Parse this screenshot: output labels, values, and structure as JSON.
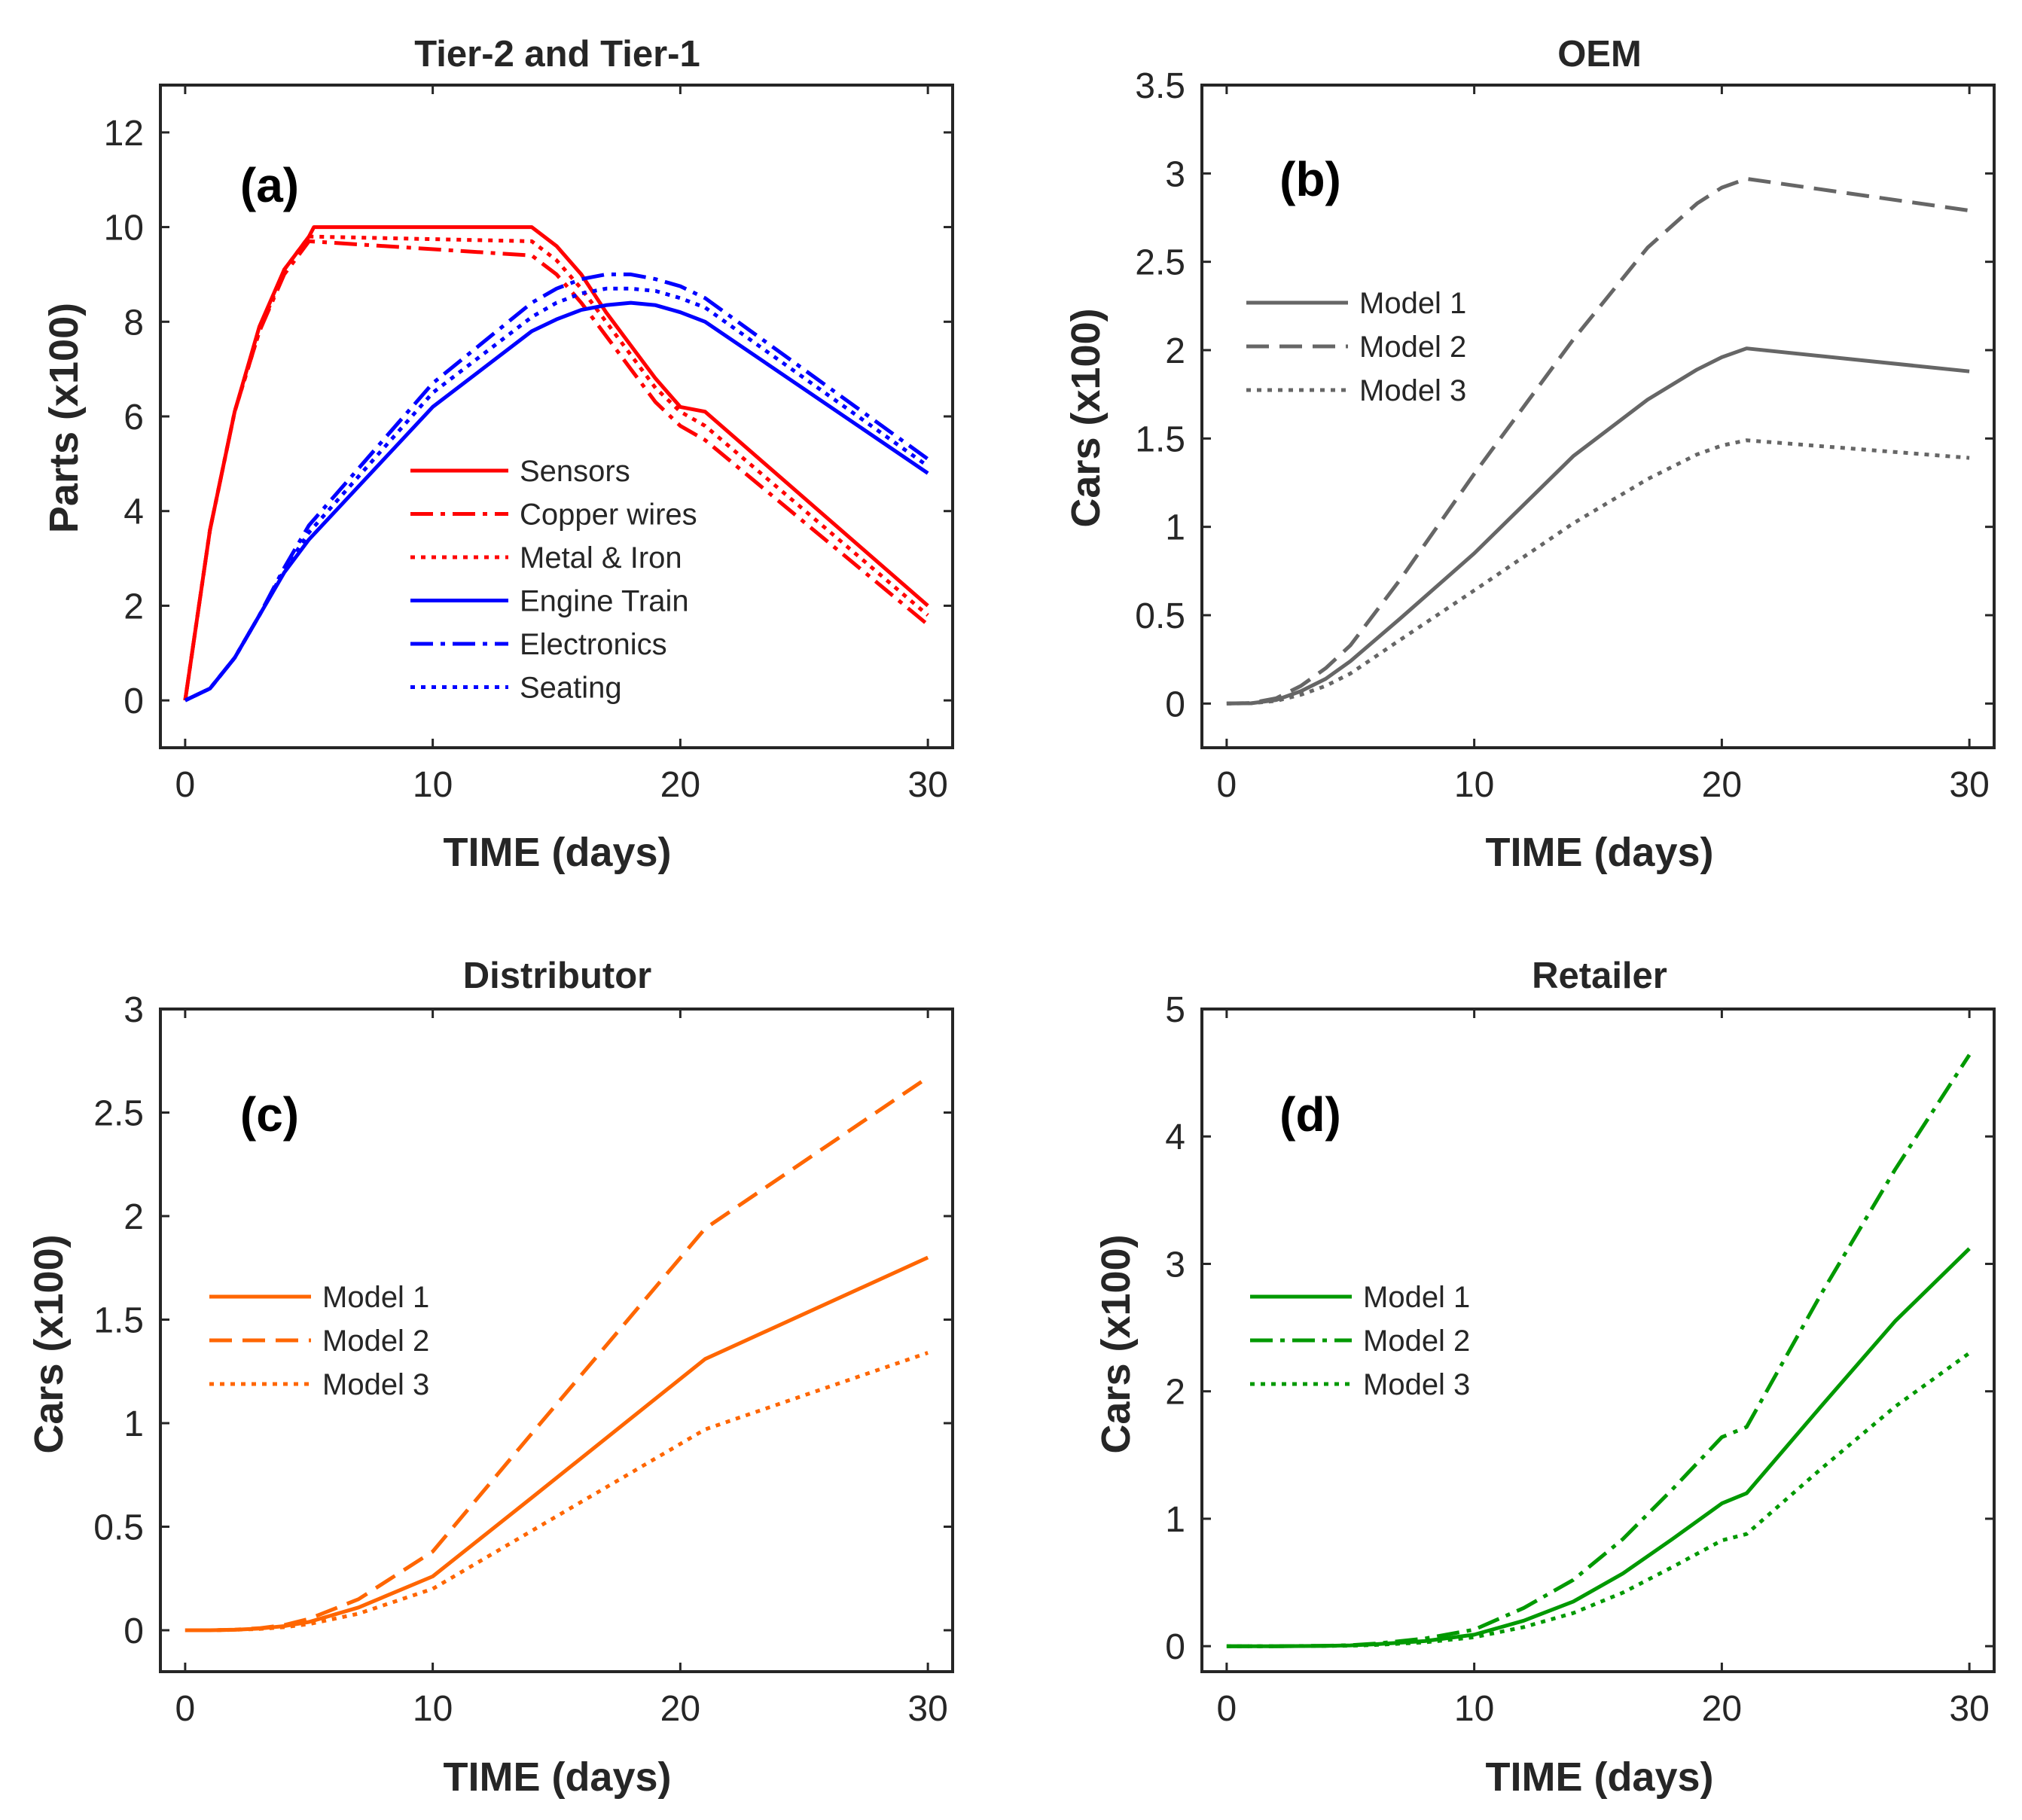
{
  "colors": {
    "red": "#ff0000",
    "blue": "#0000ff",
    "gray": "#666666",
    "orange": "#ff6600",
    "green": "#009900",
    "axis": "#262626"
  },
  "chart_data": [
    {
      "type": "line",
      "panel_label": "(a)",
      "title": "Tier-2 and Tier-1",
      "xlabel": "TIME (days)",
      "ylabel": "Parts (x100)",
      "xlim": [
        -1,
        31
      ],
      "ylim": [
        -1,
        13
      ],
      "xticks": [
        0,
        10,
        20,
        30
      ],
      "yticks": [
        0,
        2,
        4,
        6,
        8,
        10,
        12
      ],
      "legend": "center-right",
      "series": [
        {
          "name": "Sensors",
          "color": "#ff0000",
          "dash": "solid",
          "x": [
            0,
            1,
            2,
            3,
            4,
            5,
            5.2,
            14,
            15,
            16,
            17,
            18,
            19,
            20,
            21,
            30
          ],
          "y": [
            0,
            3.6,
            6.1,
            7.9,
            9.1,
            9.8,
            10.0,
            10.0,
            9.6,
            9.0,
            8.2,
            7.5,
            6.8,
            6.2,
            6.1,
            2.0
          ]
        },
        {
          "name": "Copper wires",
          "color": "#ff0000",
          "dash": "dashdot",
          "x": [
            0,
            1,
            2,
            3,
            4,
            5,
            14,
            15,
            16,
            17,
            18,
            19,
            20,
            21,
            30
          ],
          "y": [
            0,
            3.6,
            6.1,
            7.8,
            9.0,
            9.7,
            9.4,
            9.0,
            8.4,
            7.7,
            7.0,
            6.3,
            5.8,
            5.5,
            1.6
          ]
        },
        {
          "name": "Metal & Iron",
          "color": "#ff0000",
          "dash": "dotted",
          "x": [
            0,
            1,
            2,
            3,
            4,
            5,
            14,
            15,
            16,
            17,
            18,
            19,
            20,
            21,
            30
          ],
          "y": [
            0,
            3.6,
            6.1,
            7.8,
            9.1,
            9.8,
            9.7,
            9.3,
            8.7,
            8.0,
            7.3,
            6.6,
            6.1,
            5.8,
            1.8
          ]
        },
        {
          "name": "Engine Train",
          "color": "#0000ff",
          "dash": "solid",
          "x": [
            0,
            1,
            2,
            3,
            4,
            5,
            10,
            14,
            15,
            16,
            17,
            18,
            19,
            20,
            21,
            30
          ],
          "y": [
            0,
            0.25,
            0.9,
            1.8,
            2.7,
            3.4,
            6.2,
            7.8,
            8.05,
            8.25,
            8.35,
            8.4,
            8.35,
            8.2,
            8.0,
            4.8
          ]
        },
        {
          "name": "Electronics",
          "color": "#0000ff",
          "dash": "dashdot",
          "x": [
            0,
            1,
            2,
            3,
            4,
            5,
            10,
            14,
            15,
            16,
            17,
            18,
            19,
            20,
            21,
            30
          ],
          "y": [
            0,
            0.25,
            0.9,
            1.8,
            2.8,
            3.7,
            6.7,
            8.4,
            8.7,
            8.9,
            9.0,
            9.0,
            8.9,
            8.75,
            8.5,
            5.1
          ]
        },
        {
          "name": "Seating",
          "color": "#0000ff",
          "dash": "dotted",
          "x": [
            0,
            1,
            2,
            3,
            4,
            5,
            10,
            14,
            15,
            16,
            17,
            18,
            19,
            20,
            21,
            30
          ],
          "y": [
            0,
            0.25,
            0.9,
            1.8,
            2.75,
            3.55,
            6.5,
            8.1,
            8.4,
            8.6,
            8.7,
            8.7,
            8.65,
            8.5,
            8.3,
            4.95
          ]
        }
      ]
    },
    {
      "type": "line",
      "panel_label": "(b)",
      "title": "OEM",
      "xlabel": "TIME (days)",
      "ylabel": "Cars (x100)",
      "xlim": [
        -1,
        31
      ],
      "ylim": [
        -0.25,
        3.5
      ],
      "xticks": [
        0,
        10,
        20,
        30
      ],
      "yticks": [
        0,
        0.5,
        1,
        1.5,
        2,
        2.5,
        3,
        3.5
      ],
      "legend": "upper-left",
      "series": [
        {
          "name": "Model 1",
          "color": "#666666",
          "dash": "solid",
          "x": [
            0,
            1,
            2,
            3,
            4,
            5,
            7,
            10,
            14,
            17,
            19,
            20,
            21,
            30
          ],
          "y": [
            0,
            0.002,
            0.02,
            0.07,
            0.14,
            0.24,
            0.48,
            0.85,
            1.4,
            1.72,
            1.89,
            1.96,
            2.01,
            1.88
          ]
        },
        {
          "name": "Model 2",
          "color": "#666666",
          "dash": "dashed",
          "x": [
            0,
            1,
            2,
            3,
            4,
            5,
            7,
            10,
            14,
            17,
            19,
            20,
            21,
            30
          ],
          "y": [
            0,
            0.003,
            0.03,
            0.1,
            0.2,
            0.33,
            0.7,
            1.3,
            2.06,
            2.58,
            2.83,
            2.92,
            2.97,
            2.79
          ]
        },
        {
          "name": "Model 3",
          "color": "#666666",
          "dash": "dotted",
          "x": [
            0,
            1,
            2,
            3,
            4,
            5,
            7,
            10,
            14,
            17,
            19,
            20,
            21,
            30
          ],
          "y": [
            0,
            0.002,
            0.015,
            0.05,
            0.1,
            0.17,
            0.36,
            0.64,
            1.02,
            1.27,
            1.41,
            1.46,
            1.49,
            1.39
          ]
        }
      ]
    },
    {
      "type": "line",
      "panel_label": "(c)",
      "title": "Distributor",
      "xlabel": "TIME (days)",
      "ylabel": "Cars (x100)",
      "xlim": [
        -1,
        31
      ],
      "ylim": [
        -0.2,
        3
      ],
      "xticks": [
        0,
        10,
        20,
        30
      ],
      "yticks": [
        0,
        0.5,
        1,
        1.5,
        2,
        2.5,
        3
      ],
      "legend": "center-left",
      "series": [
        {
          "name": "Model 1",
          "color": "#ff6600",
          "dash": "solid",
          "x": [
            0,
            1,
            2,
            3,
            4,
            5,
            7,
            10,
            14,
            21,
            30
          ],
          "y": [
            0,
            0,
            0.002,
            0.008,
            0.02,
            0.04,
            0.11,
            0.26,
            0.64,
            1.31,
            1.8
          ]
        },
        {
          "name": "Model 2",
          "color": "#ff6600",
          "dash": "dashed",
          "x": [
            0,
            1,
            2,
            3,
            4,
            5,
            7,
            10,
            14,
            21,
            30
          ],
          "y": [
            0,
            0,
            0.003,
            0.01,
            0.025,
            0.055,
            0.15,
            0.38,
            0.95,
            1.94,
            2.67
          ]
        },
        {
          "name": "Model 3",
          "color": "#ff6600",
          "dash": "dotted",
          "x": [
            0,
            1,
            2,
            3,
            4,
            5,
            7,
            10,
            14,
            21,
            30
          ],
          "y": [
            0,
            0,
            0.002,
            0.006,
            0.015,
            0.03,
            0.08,
            0.2,
            0.48,
            0.97,
            1.34
          ]
        }
      ]
    },
    {
      "type": "line",
      "panel_label": "(d)",
      "title": "Retailer",
      "xlabel": "TIME (days)",
      "ylabel": "Cars (x100)",
      "xlim": [
        -1,
        31
      ],
      "ylim": [
        -0.2,
        5
      ],
      "xticks": [
        0,
        10,
        20,
        30
      ],
      "yticks": [
        0,
        1,
        2,
        3,
        4,
        5
      ],
      "legend": "center-left",
      "series": [
        {
          "name": "Model 1",
          "color": "#009900",
          "dash": "solid",
          "x": [
            0,
            2,
            4,
            5,
            6,
            8,
            10,
            12,
            14,
            16,
            18,
            20,
            21,
            24,
            27,
            30
          ],
          "y": [
            0,
            0,
            0.002,
            0.006,
            0.015,
            0.04,
            0.09,
            0.2,
            0.35,
            0.57,
            0.84,
            1.12,
            1.2,
            1.88,
            2.55,
            3.12
          ]
        },
        {
          "name": "Model 2",
          "color": "#009900",
          "dash": "dashdot",
          "x": [
            0,
            2,
            4,
            5,
            6,
            8,
            10,
            12,
            14,
            16,
            18,
            20,
            21,
            24,
            27,
            30
          ],
          "y": [
            0,
            0,
            0.003,
            0.008,
            0.02,
            0.06,
            0.13,
            0.3,
            0.52,
            0.84,
            1.23,
            1.64,
            1.72,
            2.76,
            3.74,
            4.64
          ]
        },
        {
          "name": "Model 3",
          "color": "#009900",
          "dash": "dotted",
          "x": [
            0,
            2,
            4,
            5,
            6,
            8,
            10,
            12,
            14,
            16,
            18,
            20,
            21,
            24,
            27,
            30
          ],
          "y": [
            0,
            0,
            0.002,
            0.004,
            0.01,
            0.03,
            0.07,
            0.15,
            0.26,
            0.42,
            0.62,
            0.83,
            0.88,
            1.39,
            1.88,
            2.3
          ]
        }
      ]
    }
  ]
}
